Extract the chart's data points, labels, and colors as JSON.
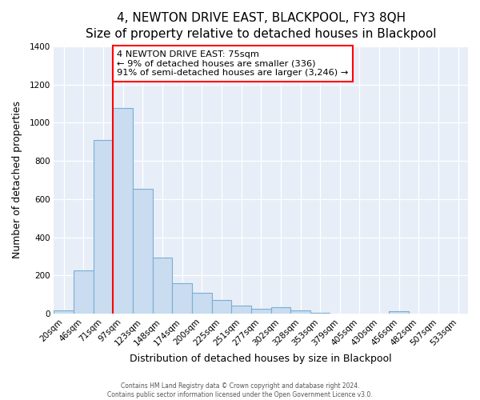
{
  "title": "4, NEWTON DRIVE EAST, BLACKPOOL, FY3 8QH",
  "subtitle": "Size of property relative to detached houses in Blackpool",
  "xlabel": "Distribution of detached houses by size in Blackpool",
  "ylabel": "Number of detached properties",
  "bar_labels": [
    "20sqm",
    "46sqm",
    "71sqm",
    "97sqm",
    "123sqm",
    "148sqm",
    "174sqm",
    "200sqm",
    "225sqm",
    "251sqm",
    "277sqm",
    "302sqm",
    "328sqm",
    "353sqm",
    "379sqm",
    "405sqm",
    "430sqm",
    "456sqm",
    "482sqm",
    "507sqm",
    "533sqm"
  ],
  "bar_values": [
    15,
    228,
    910,
    1075,
    655,
    292,
    157,
    107,
    70,
    42,
    25,
    35,
    15,
    5,
    0,
    0,
    0,
    13,
    0,
    0,
    0
  ],
  "bar_color": "#c9dcf0",
  "bar_edge_color": "#7aafd4",
  "vline_x": 2,
  "vline_color": "red",
  "annotation_text": "4 NEWTON DRIVE EAST: 75sqm\n← 9% of detached houses are smaller (336)\n91% of semi-detached houses are larger (3,246) →",
  "annotation_box_color": "white",
  "annotation_box_edge_color": "red",
  "ylim": [
    0,
    1400
  ],
  "yticks": [
    0,
    200,
    400,
    600,
    800,
    1000,
    1200,
    1400
  ],
  "footer1": "Contains HM Land Registry data © Crown copyright and database right 2024.",
  "footer2": "Contains public sector information licensed under the Open Government Licence v3.0.",
  "fig_bg_color": "#ffffff",
  "plot_bg_color": "#e8eef8",
  "grid_color": "#ffffff",
  "title_fontsize": 11,
  "axis_label_fontsize": 9,
  "tick_fontsize": 7.5
}
